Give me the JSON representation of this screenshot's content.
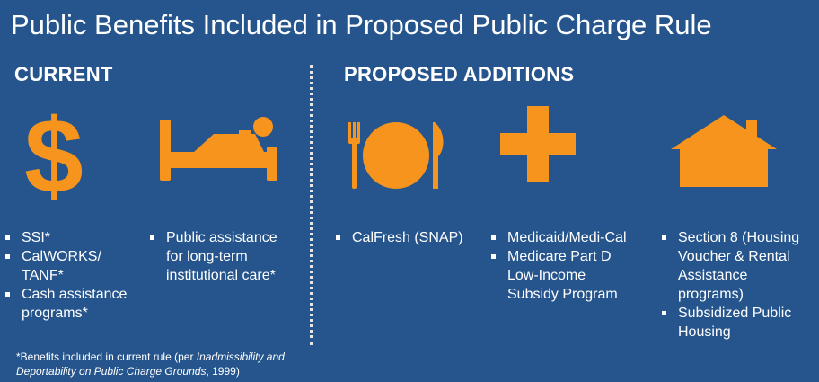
{
  "title": "Public Benefits Included in Proposed Public Charge Rule",
  "current": {
    "heading": "CURRENT",
    "groups": [
      {
        "icon": "dollar-icon",
        "items": [
          "SSI*",
          "CalWORKS/\nTANF*",
          "Cash assistance\nprograms*"
        ]
      },
      {
        "icon": "bed-icon",
        "items": [
          "Public assistance\nfor long-term\ninstitutional care*"
        ]
      }
    ]
  },
  "proposed": {
    "heading": "PROPOSED ADDITIONS",
    "groups": [
      {
        "icon": "plate-utensils-icon",
        "items": [
          "CalFresh (SNAP)"
        ]
      },
      {
        "icon": "medical-cross-icon",
        "items": [
          "Medicaid/Medi-Cal",
          "Medicare Part D\nLow-Income\nSubsidy Program"
        ]
      },
      {
        "icon": "house-icon",
        "items": [
          "Section 8 (Housing\nVoucher & Rental\nAssistance\nprograms)",
          "Subsidized Public\nHousing"
        ]
      }
    ]
  },
  "footnote": {
    "prefix": "*Benefits included in current rule (per ",
    "italic": "Inadmissibility and\nDeportability on Public Charge Grounds",
    "suffix": ", 1999)"
  },
  "colors": {
    "background": "#25558c",
    "icon": "#f7941d",
    "text": "#ffffff"
  }
}
